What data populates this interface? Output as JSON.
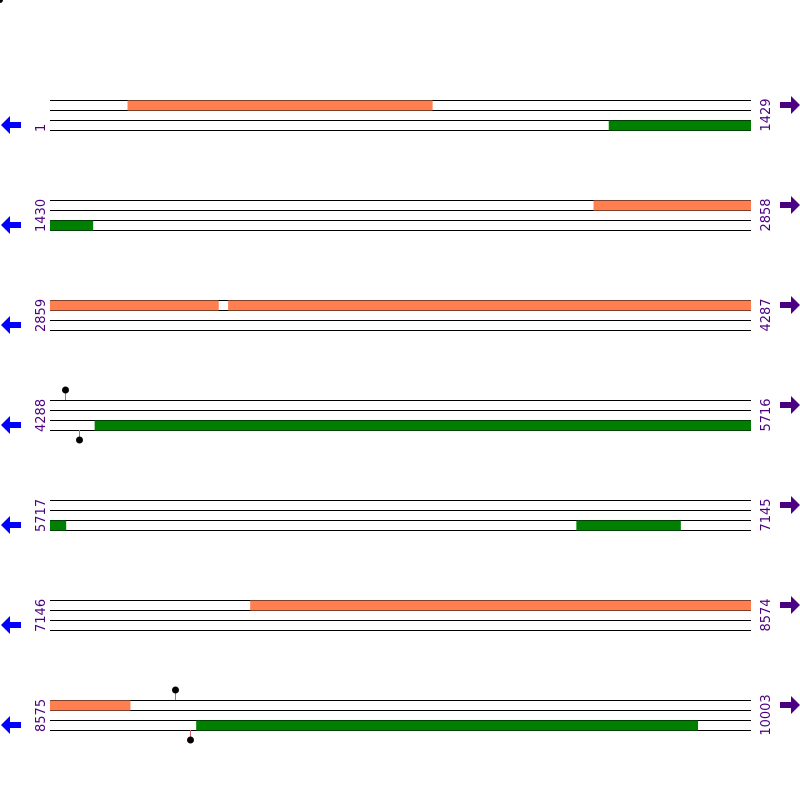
{
  "colors": {
    "forward_feature": "#ff7f50",
    "reverse_feature": "#008000",
    "line": "#000000",
    "label": "#4b0082",
    "left_arrow": "#0000ff",
    "right_arrow": "#4b0082",
    "marker_stem": "#cc6666",
    "marker_head": "#000000"
  },
  "icons": {
    "left": "left-arrow-icon",
    "right": "right-arrow-icon",
    "marker": "lollipop-marker-icon"
  },
  "rows": [
    {
      "start": "1",
      "end": "1429",
      "features": [
        {
          "strand": "forward",
          "from": 159,
          "to": 780
        },
        {
          "strand": "reverse",
          "from": 1140,
          "to": 1429
        }
      ],
      "markers": []
    },
    {
      "start": "1430",
      "end": "2858",
      "features": [
        {
          "strand": "forward",
          "from": 2538,
          "to": 2858
        },
        {
          "strand": "reverse",
          "from": 1430,
          "to": 1517
        }
      ],
      "markers": []
    },
    {
      "start": "2859",
      "end": "4287",
      "features": [
        {
          "strand": "forward",
          "from": 2859,
          "to": 3202
        },
        {
          "strand": "forward",
          "from": 3222,
          "to": 4287
        }
      ],
      "markers": []
    },
    {
      "start": "4288",
      "end": "5716",
      "features": [
        {
          "strand": "reverse",
          "from": 4379,
          "to": 5716
        }
      ],
      "markers": [
        {
          "side": "top",
          "pos": 4318
        },
        {
          "side": "bottom",
          "pos": 4348
        }
      ]
    },
    {
      "start": "5717",
      "end": "7145",
      "features": [
        {
          "strand": "reverse",
          "from": 5717,
          "to": 5749
        },
        {
          "strand": "reverse",
          "from": 6790,
          "to": 7002
        }
      ],
      "markers": []
    },
    {
      "start": "7146",
      "end": "8574",
      "features": [
        {
          "strand": "forward",
          "from": 7554,
          "to": 8574
        }
      ],
      "markers": []
    },
    {
      "start": "8575",
      "end": "10003",
      "features": [
        {
          "strand": "forward",
          "from": 8575,
          "to": 8738
        },
        {
          "strand": "reverse",
          "from": 8873,
          "to": 9895
        }
      ],
      "markers": [
        {
          "side": "top",
          "pos": 8830
        },
        {
          "side": "bottom",
          "pos": 8860
        }
      ]
    }
  ]
}
